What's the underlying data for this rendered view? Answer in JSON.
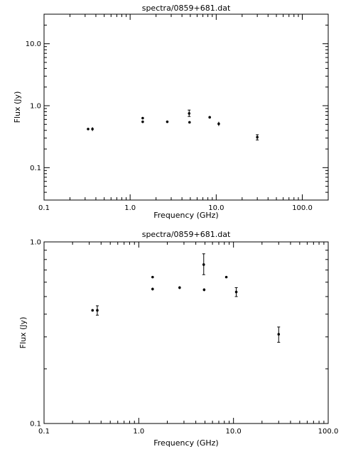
{
  "chart_data": [
    {
      "type": "scatter",
      "title": "spectra/0859+681.dat",
      "xlabel": "Frequency (GHz)",
      "ylabel": "Flux (Jy)",
      "xscale": "log",
      "yscale": "log",
      "xlim": [
        0.1,
        200
      ],
      "ylim": [
        0.03,
        30
      ],
      "xticks": [
        0.1,
        1.0,
        10.0,
        100.0
      ],
      "xtick_labels": [
        "0.1",
        "1.0",
        "10.0",
        "100.0"
      ],
      "yticks": [
        0.1,
        1.0,
        10.0
      ],
      "ytick_labels": [
        "0.1",
        "1.0",
        "10.0"
      ],
      "points": [
        {
          "x": 0.325,
          "y": 0.42,
          "yerr_lo": 0.01,
          "yerr_hi": 0.01
        },
        {
          "x": 0.365,
          "y": 0.42,
          "yerr_lo": 0.03,
          "yerr_hi": 0.03
        },
        {
          "x": 1.4,
          "y": 0.55,
          "yerr_lo": 0.01,
          "yerr_hi": 0.01
        },
        {
          "x": 1.4,
          "y": 0.63,
          "yerr_lo": 0.01,
          "yerr_hi": 0.01
        },
        {
          "x": 2.7,
          "y": 0.55,
          "yerr_lo": 0.01,
          "yerr_hi": 0.01
        },
        {
          "x": 4.85,
          "y": 0.75,
          "yerr_lo": 0.08,
          "yerr_hi": 0.1
        },
        {
          "x": 4.9,
          "y": 0.54,
          "yerr_lo": 0.01,
          "yerr_hi": 0.01
        },
        {
          "x": 8.4,
          "y": 0.65,
          "yerr_lo": 0.01,
          "yerr_hi": 0.01
        },
        {
          "x": 10.7,
          "y": 0.51,
          "yerr_lo": 0.04,
          "yerr_hi": 0.04
        },
        {
          "x": 30.0,
          "y": 0.31,
          "yerr_lo": 0.03,
          "yerr_hi": 0.03
        }
      ]
    },
    {
      "type": "scatter",
      "title": "spectra/0859+681.dat",
      "xlabel": "Frequency (GHz)",
      "ylabel": "Flux (Jy)",
      "xscale": "log",
      "yscale": "log",
      "xlim": [
        0.1,
        100
      ],
      "ylim": [
        0.1,
        1.0
      ],
      "xticks": [
        0.1,
        1.0,
        10.0,
        100.0
      ],
      "xtick_labels": [
        "0.1",
        "1.0",
        "10.0",
        "100.0"
      ],
      "yticks": [
        0.1,
        1.0
      ],
      "ytick_labels": [
        "0.1",
        "1.0"
      ],
      "points": [
        {
          "x": 0.325,
          "y": 0.42,
          "yerr_lo": 0.005,
          "yerr_hi": 0.005
        },
        {
          "x": 0.365,
          "y": 0.42,
          "yerr_lo": 0.025,
          "yerr_hi": 0.025
        },
        {
          "x": 1.4,
          "y": 0.55,
          "yerr_lo": 0.01,
          "yerr_hi": 0.01
        },
        {
          "x": 1.4,
          "y": 0.64,
          "yerr_lo": 0.005,
          "yerr_hi": 0.005
        },
        {
          "x": 2.7,
          "y": 0.56,
          "yerr_lo": 0.01,
          "yerr_hi": 0.01
        },
        {
          "x": 4.85,
          "y": 0.75,
          "yerr_lo": 0.09,
          "yerr_hi": 0.11
        },
        {
          "x": 4.9,
          "y": 0.545,
          "yerr_lo": 0.01,
          "yerr_hi": 0.01
        },
        {
          "x": 8.4,
          "y": 0.64,
          "yerr_lo": 0.005,
          "yerr_hi": 0.005
        },
        {
          "x": 10.7,
          "y": 0.53,
          "yerr_lo": 0.03,
          "yerr_hi": 0.03
        },
        {
          "x": 30.0,
          "y": 0.31,
          "yerr_lo": 0.03,
          "yerr_hi": 0.03
        }
      ]
    }
  ]
}
